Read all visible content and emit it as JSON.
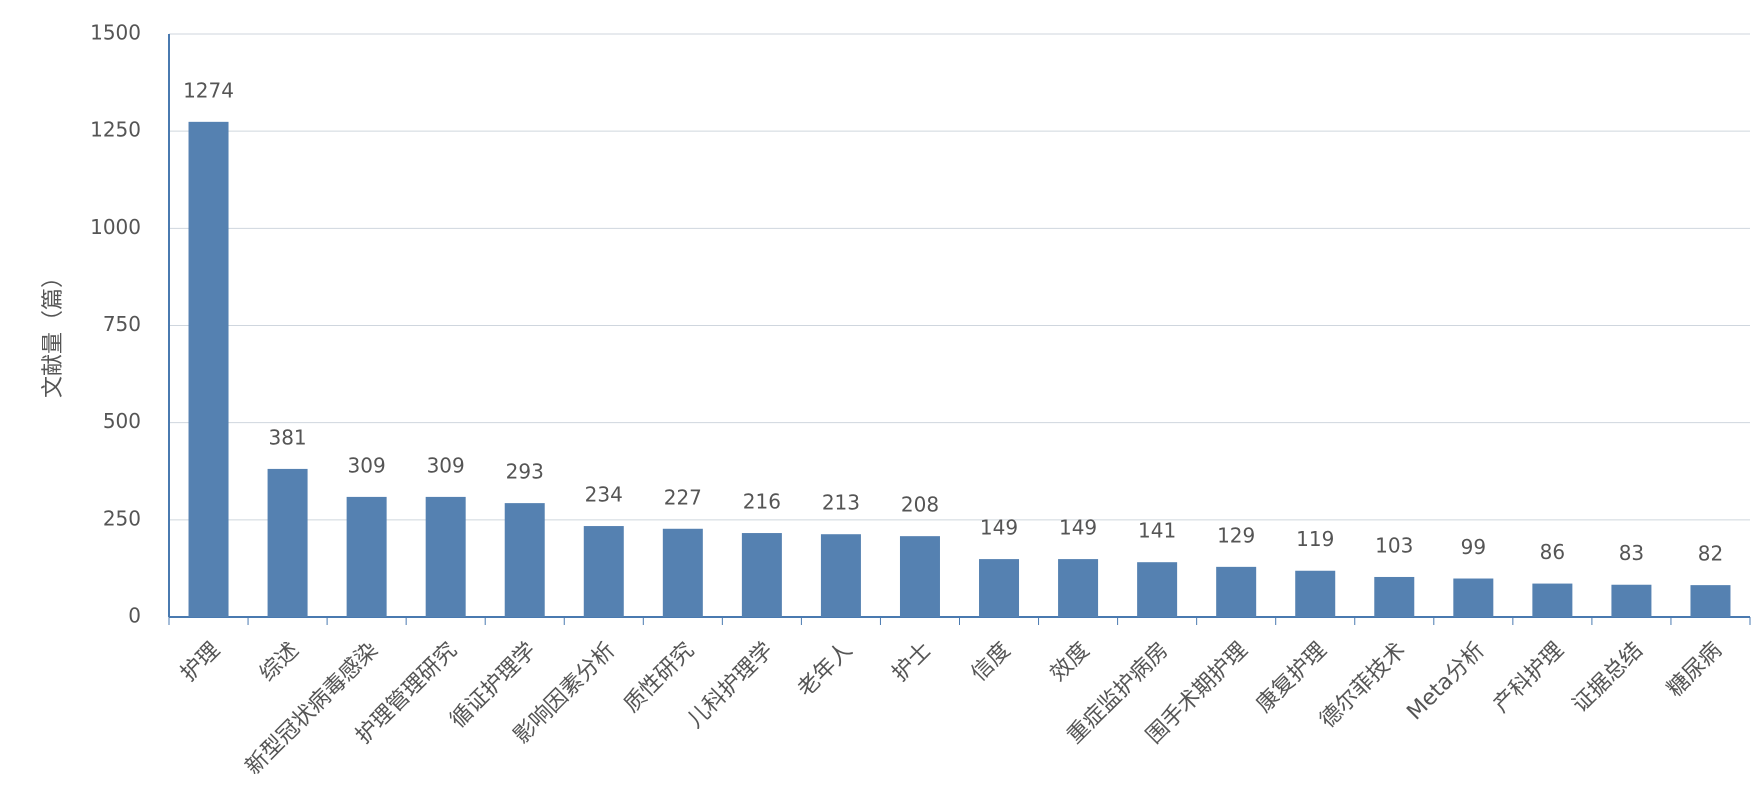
{
  "chart_data": {
    "type": "bar",
    "y_label": "文献量（篇）",
    "categories": [
      "护理",
      "综述",
      "新型冠状病毒感染",
      "护理管理研究",
      "循证护理学",
      "影响因素分析",
      "质性研究",
      "儿科护理学",
      "老年人",
      "护士",
      "信度",
      "效度",
      "重症监护病房",
      "围手术期护理",
      "康复护理",
      "德尔菲技术",
      "Meta分析",
      "产科护理",
      "证据总结",
      "糖尿病"
    ],
    "values": [
      1274,
      381,
      309,
      309,
      293,
      234,
      227,
      216,
      213,
      208,
      149,
      149,
      141,
      129,
      119,
      103,
      99,
      86,
      83,
      82
    ],
    "color": "#5581b1",
    "ylim": [
      0,
      1500
    ],
    "yticks": [
      0,
      250,
      500,
      750,
      1000,
      1250,
      1500
    ],
    "grid": true
  }
}
